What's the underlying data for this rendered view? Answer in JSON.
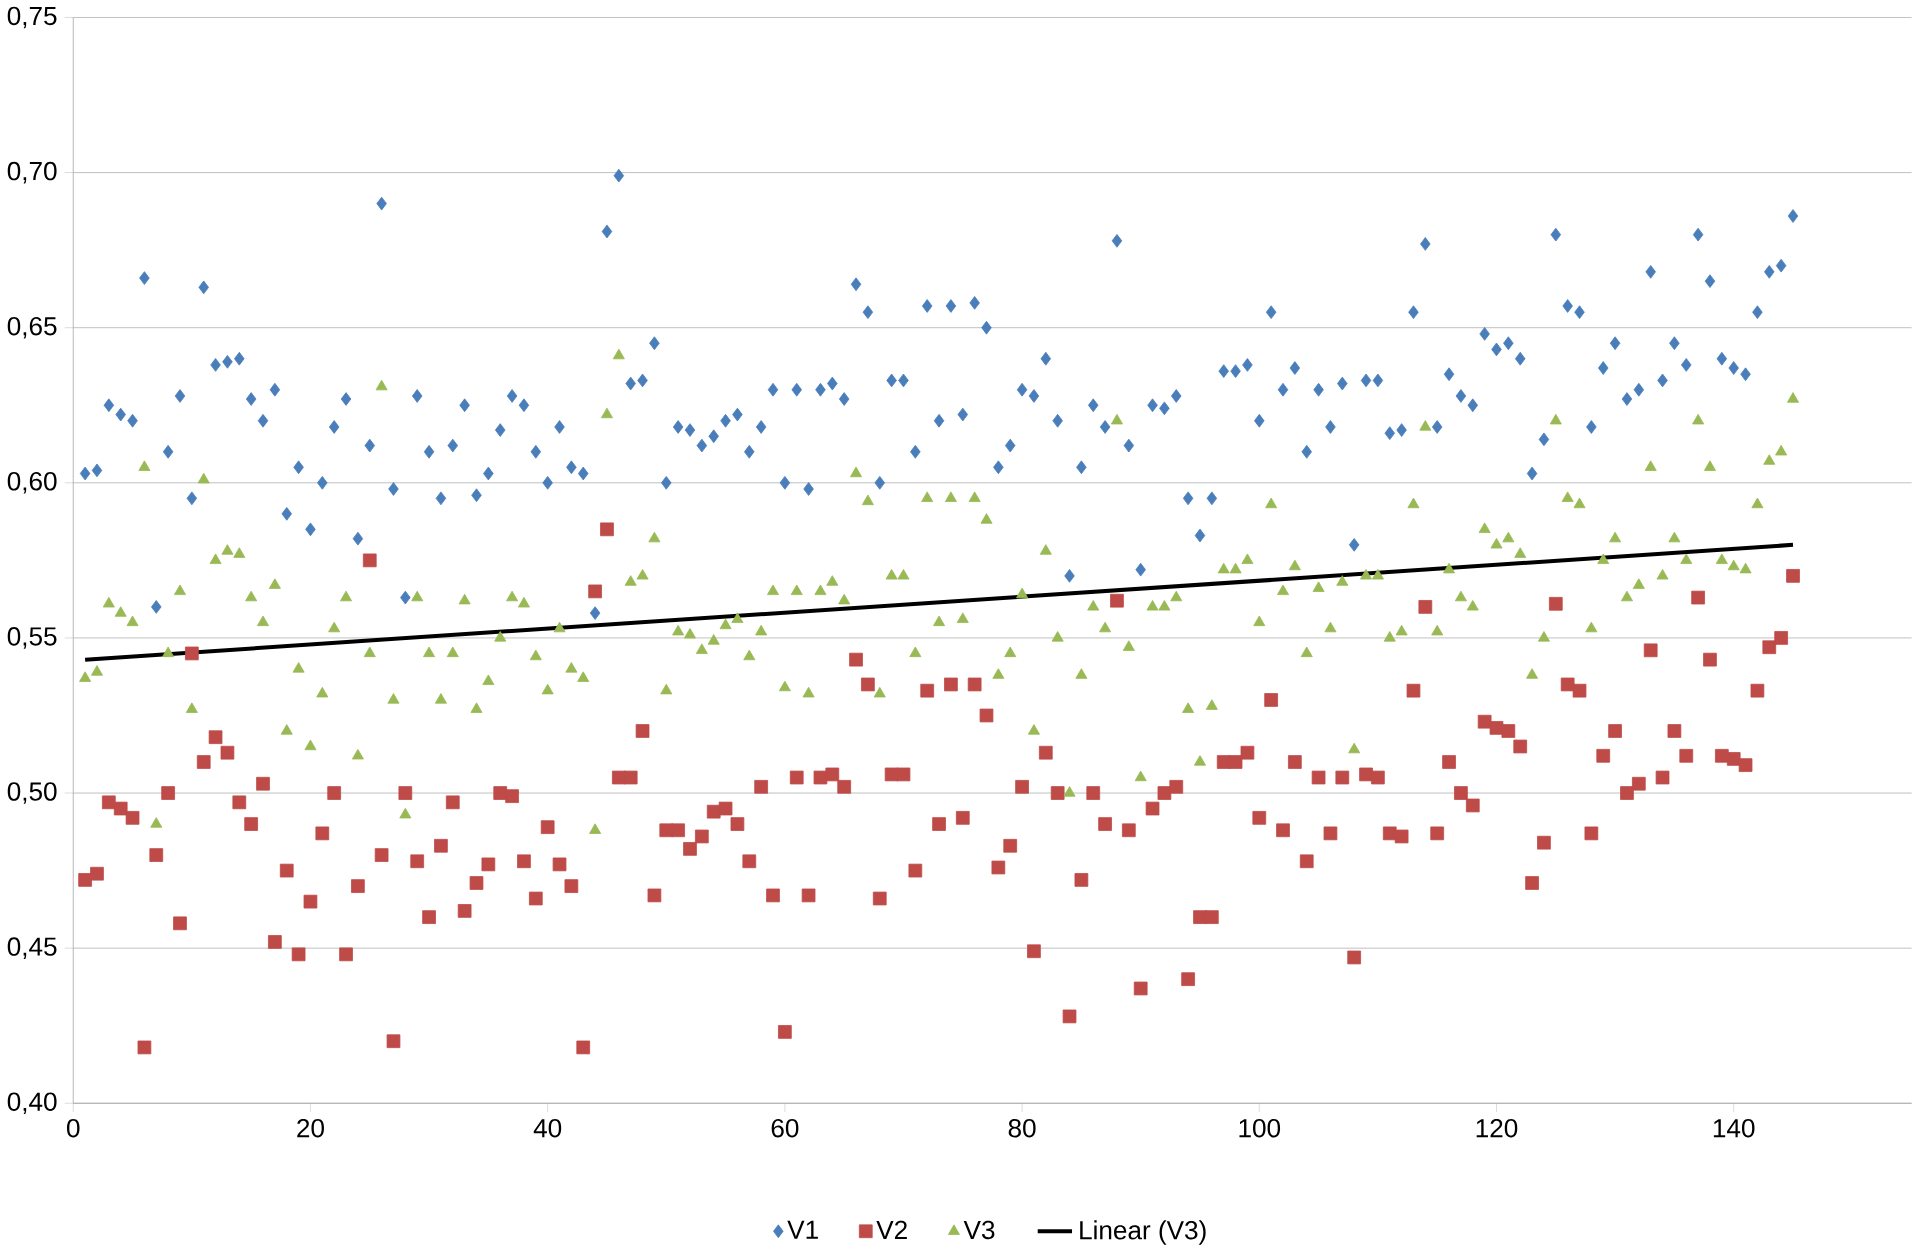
{
  "chart_data": {
    "type": "scatter",
    "x": [
      1,
      2,
      3,
      4,
      5,
      6,
      7,
      8,
      9,
      10,
      11,
      12,
      13,
      14,
      15,
      16,
      17,
      18,
      19,
      20,
      21,
      22,
      23,
      24,
      25,
      26,
      27,
      28,
      29,
      30,
      31,
      32,
      33,
      34,
      35,
      36,
      37,
      38,
      39,
      40,
      41,
      42,
      43,
      44,
      45,
      46,
      47,
      48,
      49,
      50,
      51,
      52,
      53,
      54,
      55,
      56,
      57,
      58,
      59,
      60,
      61,
      62,
      63,
      64,
      65,
      66,
      67,
      68,
      69,
      70,
      71,
      72,
      73,
      74,
      75,
      76,
      77,
      78,
      79,
      80,
      81,
      82,
      83,
      84,
      85,
      86,
      87,
      88,
      89,
      90,
      91,
      92,
      93,
      94,
      95,
      96,
      97,
      98,
      99,
      100,
      101,
      102,
      103,
      104,
      105,
      106,
      107,
      108,
      109,
      110,
      111,
      112,
      113,
      114,
      115,
      116,
      117,
      118,
      119,
      120,
      121,
      122,
      123,
      124,
      125,
      126,
      127,
      128,
      129,
      130,
      131,
      132,
      133,
      134,
      135,
      136,
      137,
      138,
      139,
      140,
      141,
      142,
      143,
      144,
      145
    ],
    "series": [
      {
        "name": "V1",
        "color": "#4a7ebb",
        "marker": "diamond",
        "values": [
          0.603,
          0.604,
          0.625,
          0.622,
          0.62,
          0.666,
          0.56,
          0.61,
          0.628,
          0.595,
          0.663,
          0.638,
          0.639,
          0.64,
          0.627,
          0.62,
          0.63,
          0.59,
          0.605,
          0.585,
          0.6,
          0.618,
          0.627,
          0.582,
          0.612,
          0.69,
          0.598,
          0.563,
          0.628,
          0.61,
          0.595,
          0.612,
          0.625,
          0.596,
          0.603,
          0.617,
          0.628,
          0.625,
          0.61,
          0.6,
          0.618,
          0.605,
          0.603,
          0.558,
          0.681,
          0.699,
          0.632,
          0.633,
          0.645,
          0.6,
          0.618,
          0.617,
          0.612,
          0.615,
          0.62,
          0.622,
          0.61,
          0.618,
          0.63,
          0.6,
          0.63,
          0.598,
          0.63,
          0.632,
          0.627,
          0.664,
          0.655,
          0.6,
          0.633,
          0.633,
          0.61,
          0.657,
          0.62,
          0.657,
          0.622,
          0.658,
          0.65,
          0.605,
          0.612,
          0.63,
          0.628,
          0.64,
          0.62,
          0.57,
          0.605,
          0.625,
          0.618,
          0.678,
          0.612,
          0.572,
          0.625,
          0.624,
          0.628,
          0.595,
          0.583,
          0.595,
          0.636,
          0.636,
          0.638,
          0.62,
          0.655,
          0.63,
          0.637,
          0.61,
          0.63,
          0.618,
          0.632,
          0.58,
          0.633,
          0.633,
          0.616,
          0.617,
          0.655,
          0.677,
          0.618,
          0.635,
          0.628,
          0.625,
          0.648,
          0.643,
          0.645,
          0.64,
          0.603,
          0.614,
          0.68,
          0.657,
          0.655,
          0.618,
          0.637,
          0.645,
          0.627,
          0.63,
          0.668,
          0.633,
          0.645,
          0.638,
          0.68,
          0.665,
          0.64,
          0.637,
          0.635,
          0.655,
          0.668,
          0.67,
          0.686
        ]
      },
      {
        "name": "V2",
        "color": "#be4b48",
        "marker": "square",
        "values": [
          0.472,
          0.474,
          0.497,
          0.495,
          0.492,
          0.418,
          0.48,
          0.5,
          0.458,
          0.545,
          0.51,
          0.518,
          0.513,
          0.497,
          0.49,
          0.503,
          0.452,
          0.475,
          0.448,
          0.465,
          0.487,
          0.5,
          0.448,
          0.47,
          0.575,
          0.48,
          0.42,
          0.5,
          0.478,
          0.46,
          0.483,
          0.497,
          0.462,
          0.471,
          0.477,
          0.5,
          0.499,
          0.478,
          0.466,
          0.489,
          0.477,
          0.47,
          0.418,
          0.565,
          0.585,
          0.505,
          0.505,
          0.52,
          0.467,
          0.488,
          0.488,
          0.482,
          0.486,
          0.494,
          0.495,
          0.49,
          0.478,
          0.502,
          0.467,
          0.423,
          0.505,
          0.467,
          0.505,
          0.506,
          0.502,
          0.543,
          0.535,
          0.466,
          0.506,
          0.506,
          0.475,
          0.533,
          0.49,
          0.535,
          0.492,
          0.535,
          0.525,
          0.476,
          0.483,
          0.502,
          0.449,
          0.513,
          0.5,
          0.428,
          0.472,
          0.5,
          0.49,
          0.562,
          0.488,
          0.437,
          0.495,
          0.5,
          0.502,
          0.44,
          0.46,
          0.46,
          0.51,
          0.51,
          0.513,
          0.492,
          0.53,
          0.488,
          0.51,
          0.478,
          0.505,
          0.487,
          0.505,
          0.447,
          0.506,
          0.505,
          0.487,
          0.486,
          0.533,
          0.56,
          0.487,
          0.51,
          0.5,
          0.496,
          0.523,
          0.521,
          0.52,
          0.515,
          0.471,
          0.484,
          0.561,
          0.535,
          0.533,
          0.487,
          0.512,
          0.52,
          0.5,
          0.503,
          0.546,
          0.505,
          0.52,
          0.512,
          0.563,
          0.543,
          0.512,
          0.511,
          0.509,
          0.533,
          0.547,
          0.55,
          0.57
        ]
      },
      {
        "name": "V3",
        "color": "#98b954",
        "marker": "triangle",
        "values": [
          0.537,
          0.539,
          0.561,
          0.558,
          0.555,
          0.605,
          0.49,
          0.545,
          0.565,
          0.527,
          0.601,
          0.575,
          0.578,
          0.577,
          0.563,
          0.555,
          0.567,
          0.52,
          0.54,
          0.515,
          0.532,
          0.553,
          0.563,
          0.512,
          0.545,
          0.631,
          0.53,
          0.493,
          0.563,
          0.545,
          0.53,
          0.545,
          0.562,
          0.527,
          0.536,
          0.55,
          0.563,
          0.561,
          0.544,
          0.533,
          0.553,
          0.54,
          0.537,
          0.488,
          0.622,
          0.641,
          0.568,
          0.57,
          0.582,
          0.533,
          0.552,
          0.551,
          0.546,
          0.549,
          0.554,
          0.556,
          0.544,
          0.552,
          0.565,
          0.534,
          0.565,
          0.532,
          0.565,
          0.568,
          0.562,
          0.603,
          0.594,
          0.532,
          0.57,
          0.57,
          0.545,
          0.595,
          0.555,
          0.595,
          0.556,
          0.595,
          0.588,
          0.538,
          0.545,
          0.564,
          0.52,
          0.578,
          0.55,
          0.5,
          0.538,
          0.56,
          0.553,
          0.62,
          0.547,
          0.505,
          0.56,
          0.56,
          0.563,
          0.527,
          0.51,
          0.528,
          0.572,
          0.572,
          0.575,
          0.555,
          0.593,
          0.565,
          0.573,
          0.545,
          0.566,
          0.553,
          0.568,
          0.514,
          0.57,
          0.57,
          0.55,
          0.552,
          0.593,
          0.618,
          0.552,
          0.572,
          0.563,
          0.56,
          0.585,
          0.58,
          0.582,
          0.577,
          0.538,
          0.55,
          0.62,
          0.595,
          0.593,
          0.553,
          0.575,
          0.582,
          0.563,
          0.567,
          0.605,
          0.57,
          0.582,
          0.575,
          0.62,
          0.605,
          0.575,
          0.573,
          0.572,
          0.593,
          0.607,
          0.61,
          0.627
        ]
      },
      {
        "name": "Linear (V3)",
        "type": "line",
        "color": "#000000",
        "marker": "none",
        "x": [
          1,
          145
        ],
        "values": [
          0.543,
          0.58
        ]
      }
    ],
    "xlim": [
      0,
      155
    ],
    "xticks": [
      0,
      20,
      40,
      60,
      80,
      100,
      120,
      140
    ],
    "ylim": [
      0.4,
      0.75
    ],
    "yticks": [
      {
        "value": 0.4,
        "label": "0,40"
      },
      {
        "value": 0.45,
        "label": "0,45"
      },
      {
        "value": 0.5,
        "label": "0,50"
      },
      {
        "value": 0.55,
        "label": "0,55"
      },
      {
        "value": 0.6,
        "label": "0,60"
      },
      {
        "value": 0.65,
        "label": "0,65"
      },
      {
        "value": 0.7,
        "label": "0,70"
      },
      {
        "value": 0.75,
        "label": "0,75"
      }
    ],
    "grid": "y",
    "legend": "bottom"
  }
}
